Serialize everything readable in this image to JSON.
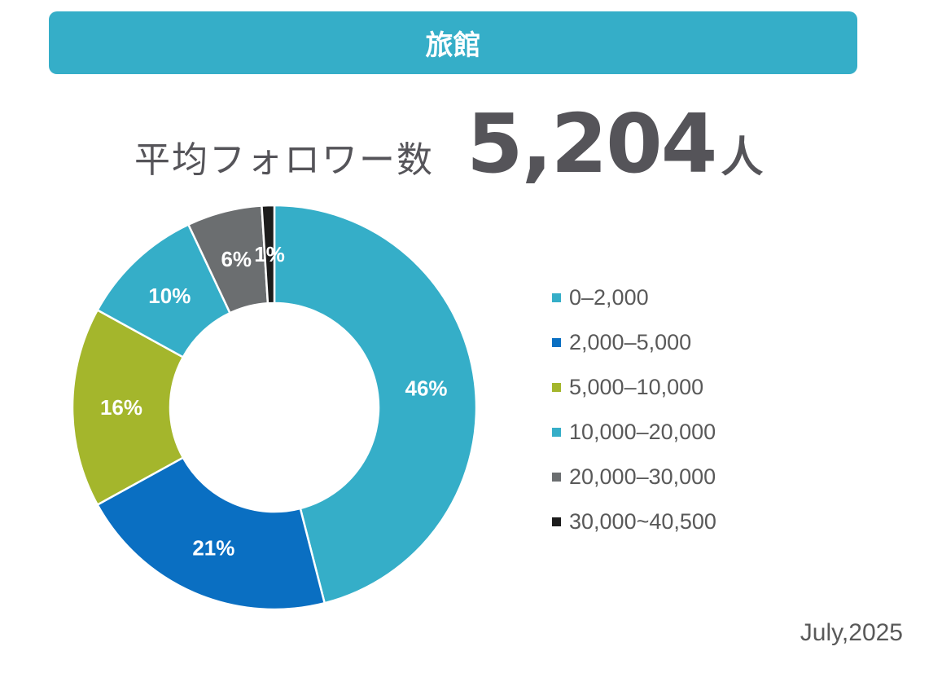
{
  "banner": {
    "title": "旅館"
  },
  "summary": {
    "label": "平均フォロワー数",
    "value": "5,204",
    "unit": "人"
  },
  "date": "July,2025",
  "colors": {
    "banner": "#35aec8",
    "text": "#555459"
  },
  "chart_data": {
    "type": "pie",
    "variant": "donut",
    "title": "平均フォロワー数",
    "categories": [
      "0–2,000",
      "2,000–5,000",
      "5,000–10,000",
      "10,000–20,000",
      "20,000–30,000",
      "30,000~40,500"
    ],
    "values": [
      46,
      21,
      16,
      10,
      6,
      1
    ],
    "labels": [
      "46%",
      "21%",
      "16%",
      "10%",
      "6%",
      "1%"
    ],
    "unit": "%",
    "colors": [
      "#35aec8",
      "#0a6fc2",
      "#a4b62c",
      "#35aec8",
      "#6b6e70",
      "#1c1c1c"
    ],
    "legend_position": "right"
  }
}
